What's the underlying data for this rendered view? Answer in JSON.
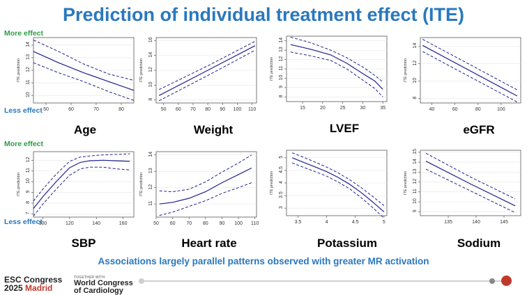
{
  "title": "Prediction of individual treatment effect (ITE)",
  "more_effect_label": "More effect",
  "less_effect_label": "Less effect",
  "subtitle": "Associations largely parallel patterns observed with greater MR activation",
  "footer": {
    "esc_line1": "ESC Congress",
    "esc_year": "2025",
    "esc_city": "Madrid",
    "wcc_small": "TOGETHER WITH",
    "wcc_line1": "World Congress",
    "wcc_line2": "of Cardiology"
  },
  "colors": {
    "title": "#2a78be",
    "more": "#2e9c46",
    "less": "#2a78be",
    "line": "#1f1f8f"
  },
  "chart_data": [
    {
      "type": "line",
      "label": "Age",
      "ylabel": "ITE prediction",
      "xlim": [
        45,
        85
      ],
      "ylim": [
        9.4,
        14.6
      ],
      "xticks": [
        50,
        60,
        70,
        80
      ],
      "yticks": [
        10,
        11,
        12,
        13,
        14
      ],
      "series": [
        {
          "role": "estimate",
          "x": [
            45,
            55,
            65,
            75,
            85
          ],
          "y": [
            13.5,
            12.6,
            11.8,
            11.1,
            10.4
          ]
        },
        {
          "role": "upper",
          "x": [
            45,
            55,
            65,
            75,
            85
          ],
          "y": [
            14.4,
            13.5,
            12.5,
            11.7,
            11.2
          ]
        },
        {
          "role": "lower",
          "x": [
            45,
            55,
            65,
            75,
            85
          ],
          "y": [
            12.6,
            11.8,
            11.1,
            10.3,
            9.6
          ]
        }
      ]
    },
    {
      "type": "line",
      "label": "Weight",
      "ylabel": "ITE prediction",
      "xlim": [
        45,
        113
      ],
      "ylim": [
        7.6,
        16.4
      ],
      "xticks": [
        50,
        60,
        70,
        80,
        90,
        100,
        110
      ],
      "yticks": [
        8,
        10,
        12,
        14,
        16
      ],
      "series": [
        {
          "role": "estimate",
          "x": [
            47,
            80,
            112
          ],
          "y": [
            8.6,
            12.0,
            15.3
          ]
        },
        {
          "role": "upper",
          "x": [
            47,
            80,
            112
          ],
          "y": [
            9.4,
            12.6,
            15.9
          ]
        },
        {
          "role": "lower",
          "x": [
            47,
            80,
            112
          ],
          "y": [
            7.9,
            11.3,
            14.7
          ]
        }
      ]
    },
    {
      "type": "line",
      "label": "LVEF",
      "ylabel": "ITE prediction",
      "xlim": [
        11,
        36
      ],
      "ylim": [
        7.5,
        14.5
      ],
      "xticks": [
        15,
        20,
        25,
        30,
        35
      ],
      "yticks": [
        8,
        9,
        10,
        11,
        12,
        13,
        14
      ],
      "series": [
        {
          "role": "estimate",
          "x": [
            12,
            17,
            22,
            26,
            30,
            33,
            35
          ],
          "y": [
            13.6,
            13.1,
            12.5,
            11.6,
            10.5,
            9.7,
            8.8
          ]
        },
        {
          "role": "upper",
          "x": [
            12,
            17,
            22,
            26,
            30,
            33,
            35
          ],
          "y": [
            14.4,
            13.8,
            13.0,
            12.2,
            11.2,
            10.3,
            9.6
          ]
        },
        {
          "role": "lower",
          "x": [
            12,
            17,
            22,
            26,
            30,
            33,
            35
          ],
          "y": [
            12.8,
            12.4,
            11.9,
            11.0,
            9.8,
            8.9,
            8.0
          ]
        }
      ]
    },
    {
      "type": "line",
      "label": "eGFR",
      "ylabel": "ITE prediction",
      "xlim": [
        30,
        117
      ],
      "ylim": [
        7.5,
        15
      ],
      "xticks": [
        40,
        60,
        80,
        100
      ],
      "yticks": [
        8,
        10,
        12,
        14
      ],
      "series": [
        {
          "role": "estimate",
          "x": [
            32,
            114
          ],
          "y": [
            14.1,
            8.3
          ]
        },
        {
          "role": "upper",
          "x": [
            32,
            114
          ],
          "y": [
            14.8,
            9.0
          ]
        },
        {
          "role": "lower",
          "x": [
            32,
            114
          ],
          "y": [
            13.4,
            7.6
          ]
        }
      ]
    },
    {
      "type": "line",
      "label": "SBP",
      "ylabel": "ITE prediction",
      "xlim": [
        93,
        168
      ],
      "ylim": [
        6.7,
        12.8
      ],
      "xticks": [
        100,
        120,
        140,
        160
      ],
      "yticks": [
        7,
        8,
        9,
        10,
        11,
        12
      ],
      "series": [
        {
          "role": "estimate",
          "x": [
            93,
            100,
            110,
            120,
            128,
            135,
            145,
            155,
            165
          ],
          "y": [
            7.5,
            8.6,
            10.0,
            11.3,
            11.8,
            11.95,
            12.0,
            11.95,
            11.9
          ]
        },
        {
          "role": "upper",
          "x": [
            93,
            100,
            110,
            120,
            128,
            135,
            145,
            155,
            165
          ],
          "y": [
            8.2,
            9.3,
            10.7,
            11.9,
            12.3,
            12.4,
            12.5,
            12.55,
            12.6
          ]
        },
        {
          "role": "lower",
          "x": [
            93,
            100,
            110,
            120,
            128,
            135,
            145,
            155,
            165
          ],
          "y": [
            6.8,
            7.9,
            9.3,
            10.6,
            11.2,
            11.35,
            11.35,
            11.2,
            11.1
          ]
        }
      ]
    },
    {
      "type": "line",
      "label": "Heart rate",
      "ylabel": "ITE prediction",
      "xlim": [
        50,
        111
      ],
      "ylim": [
        10.2,
        14.2
      ],
      "xticks": [
        50,
        60,
        70,
        80,
        90,
        100,
        110
      ],
      "yticks": [
        11,
        12,
        13,
        14
      ],
      "series": [
        {
          "role": "estimate",
          "x": [
            52,
            60,
            70,
            80,
            90,
            100,
            108
          ],
          "y": [
            11.0,
            11.1,
            11.35,
            11.75,
            12.3,
            12.8,
            13.2
          ]
        },
        {
          "role": "upper",
          "x": [
            52,
            60,
            70,
            80,
            90,
            100,
            108
          ],
          "y": [
            11.8,
            11.75,
            11.9,
            12.35,
            12.95,
            13.5,
            14.0
          ]
        },
        {
          "role": "lower",
          "x": [
            52,
            60,
            70,
            80,
            90,
            100,
            108
          ],
          "y": [
            10.3,
            10.5,
            10.85,
            11.2,
            11.65,
            12.0,
            12.3
          ]
        }
      ]
    },
    {
      "type": "line",
      "label": "Potassium",
      "ylabel": "ITE prediction",
      "xlim": [
        3.3,
        5.05
      ],
      "ylim": [
        2.7,
        5.3
      ],
      "xticks": [
        3.5,
        4.0,
        4.5,
        5.0
      ],
      "yticks": [
        3,
        3.5,
        4,
        4.5,
        5
      ],
      "series": [
        {
          "role": "estimate",
          "x": [
            3.4,
            3.6,
            3.8,
            4.0,
            4.2,
            4.4,
            4.6,
            4.8,
            5.0
          ],
          "y": [
            5.0,
            4.82,
            4.64,
            4.45,
            4.22,
            3.95,
            3.62,
            3.25,
            2.85
          ]
        },
        {
          "role": "upper",
          "x": [
            3.4,
            3.6,
            3.8,
            4.0,
            4.2,
            4.4,
            4.6,
            4.8,
            5.0
          ],
          "y": [
            5.2,
            5.02,
            4.83,
            4.63,
            4.4,
            4.13,
            3.82,
            3.47,
            3.1
          ]
        },
        {
          "role": "lower",
          "x": [
            3.4,
            3.6,
            3.8,
            4.0,
            4.2,
            4.4,
            4.6,
            4.8,
            5.0
          ],
          "y": [
            4.8,
            4.62,
            4.45,
            4.27,
            4.04,
            3.77,
            3.42,
            3.03,
            2.6
          ]
        }
      ]
    },
    {
      "type": "line",
      "label": "Sodium",
      "ylabel": "ITE prediction",
      "xlim": [
        130,
        148
      ],
      "ylim": [
        8.6,
        15.2
      ],
      "xticks": [
        135,
        140,
        145
      ],
      "yticks": [
        9,
        10,
        11,
        12,
        13,
        14,
        15
      ],
      "series": [
        {
          "role": "estimate",
          "x": [
            131,
            139,
            147
          ],
          "y": [
            14.1,
            11.8,
            9.6
          ]
        },
        {
          "role": "upper",
          "x": [
            131,
            139,
            147
          ],
          "y": [
            14.9,
            12.5,
            10.3
          ]
        },
        {
          "role": "lower",
          "x": [
            131,
            139,
            147
          ],
          "y": [
            13.3,
            11.1,
            8.9
          ]
        }
      ]
    }
  ]
}
